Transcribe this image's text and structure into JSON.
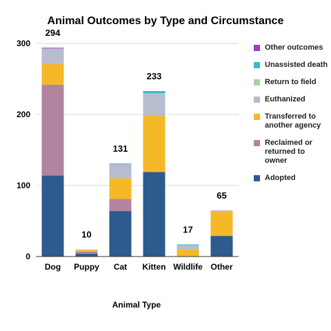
{
  "chart_data": {
    "type": "bar",
    "stacked": true,
    "title": "Animal Outcomes by Type and Circumstance",
    "xlabel": "Animal Type",
    "ylabel": "",
    "ylim": [
      0,
      300
    ],
    "yticks": [
      "0",
      "100",
      "200",
      "300"
    ],
    "grid": true,
    "legend_position": "right",
    "categories": [
      "Dog",
      "Puppy",
      "Cat",
      "Kitten",
      "Wildlife",
      "Other"
    ],
    "totals": [
      "294",
      "10",
      "131",
      "233",
      "17",
      "65"
    ],
    "series": [
      {
        "name": "Adopted",
        "color": "#2e5b8e",
        "values": [
          114,
          4,
          64,
          119,
          0,
          29
        ]
      },
      {
        "name": "Reclaimed or returned to owner",
        "color": "#b2849f",
        "values": [
          128,
          3,
          17,
          0,
          0,
          0
        ]
      },
      {
        "name": "Transferred to another agency",
        "color": "#f5b827",
        "values": [
          29,
          2,
          29,
          79,
          10,
          34
        ]
      },
      {
        "name": "Euthanized",
        "color": "#b8bccf",
        "values": [
          22,
          1,
          20,
          32,
          6,
          2
        ]
      },
      {
        "name": "Return to field",
        "color": "#a8d3a0",
        "values": [
          0,
          0,
          0,
          0,
          0,
          0
        ]
      },
      {
        "name": "Unassisted death",
        "color": "#3eb8c9",
        "values": [
          0,
          0,
          1,
          3,
          1,
          0
        ]
      },
      {
        "name": "Other outcomes",
        "color": "#a23bc4",
        "values": [
          1,
          0,
          0,
          0,
          0,
          0
        ]
      }
    ]
  }
}
